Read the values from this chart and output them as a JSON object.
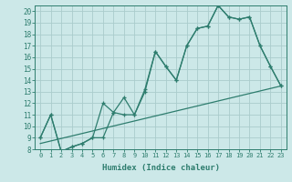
{
  "xlabel": "Humidex (Indice chaleur)",
  "bg_color": "#cce8e8",
  "grid_color": "#aacccc",
  "line_color": "#2e7d6e",
  "xlim": [
    -0.5,
    23.5
  ],
  "ylim": [
    8,
    20.5
  ],
  "xticks": [
    0,
    1,
    2,
    3,
    4,
    5,
    6,
    7,
    8,
    9,
    10,
    11,
    12,
    13,
    14,
    15,
    16,
    17,
    18,
    19,
    20,
    21,
    22,
    23
  ],
  "yticks": [
    8,
    9,
    10,
    11,
    12,
    13,
    14,
    15,
    16,
    17,
    18,
    19,
    20
  ],
  "line1_x": [
    0,
    1,
    2,
    3,
    4,
    5,
    6,
    7,
    8,
    9,
    10,
    11,
    12,
    13,
    14,
    15,
    16,
    17,
    18,
    19,
    20,
    21,
    22,
    23
  ],
  "line1_y": [
    9,
    11,
    7.8,
    8.2,
    8.5,
    9.0,
    12.0,
    11.2,
    12.5,
    11.0,
    13.2,
    16.5,
    15.2,
    14.0,
    17.0,
    18.5,
    18.7,
    20.5,
    19.5,
    19.3,
    19.5,
    17.0,
    15.2,
    13.5
  ],
  "line2_x": [
    0,
    1,
    2,
    3,
    4,
    5,
    6,
    7,
    8,
    9,
    10,
    11,
    12,
    13,
    14,
    15,
    16,
    17,
    18,
    19,
    20,
    21,
    22,
    23
  ],
  "line2_y": [
    9.0,
    11.0,
    7.8,
    8.2,
    8.5,
    9.0,
    9.0,
    11.2,
    11.0,
    11.0,
    13.0,
    16.5,
    15.2,
    14.0,
    17.0,
    18.5,
    18.7,
    20.5,
    19.5,
    19.3,
    19.5,
    17.0,
    15.2,
    13.5
  ],
  "line3_x": [
    0,
    23
  ],
  "line3_y": [
    8.5,
    13.5
  ]
}
